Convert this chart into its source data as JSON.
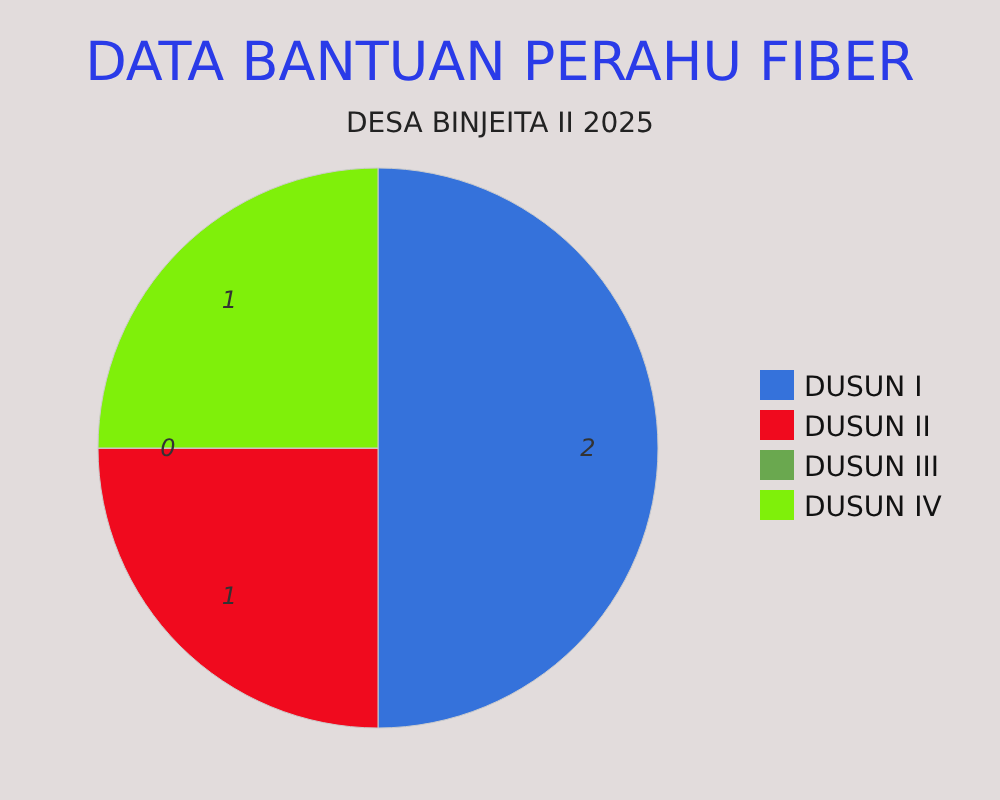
{
  "chart_data": {
    "type": "pie",
    "title": "DATA BANTUAN PERAHU FIBER",
    "subtitle": "DESA BINJEITA II 2025",
    "categories": [
      "DUSUN I",
      "DUSUN II",
      "DUSUN III",
      "DUSUN IV"
    ],
    "values": [
      2,
      1,
      0,
      1
    ],
    "colors": [
      "#3572db",
      "#f00a1e",
      "#6aa84f",
      "#7ff00a"
    ],
    "value_labels": [
      "2",
      "1",
      "0",
      "1"
    ],
    "legend": "right"
  }
}
